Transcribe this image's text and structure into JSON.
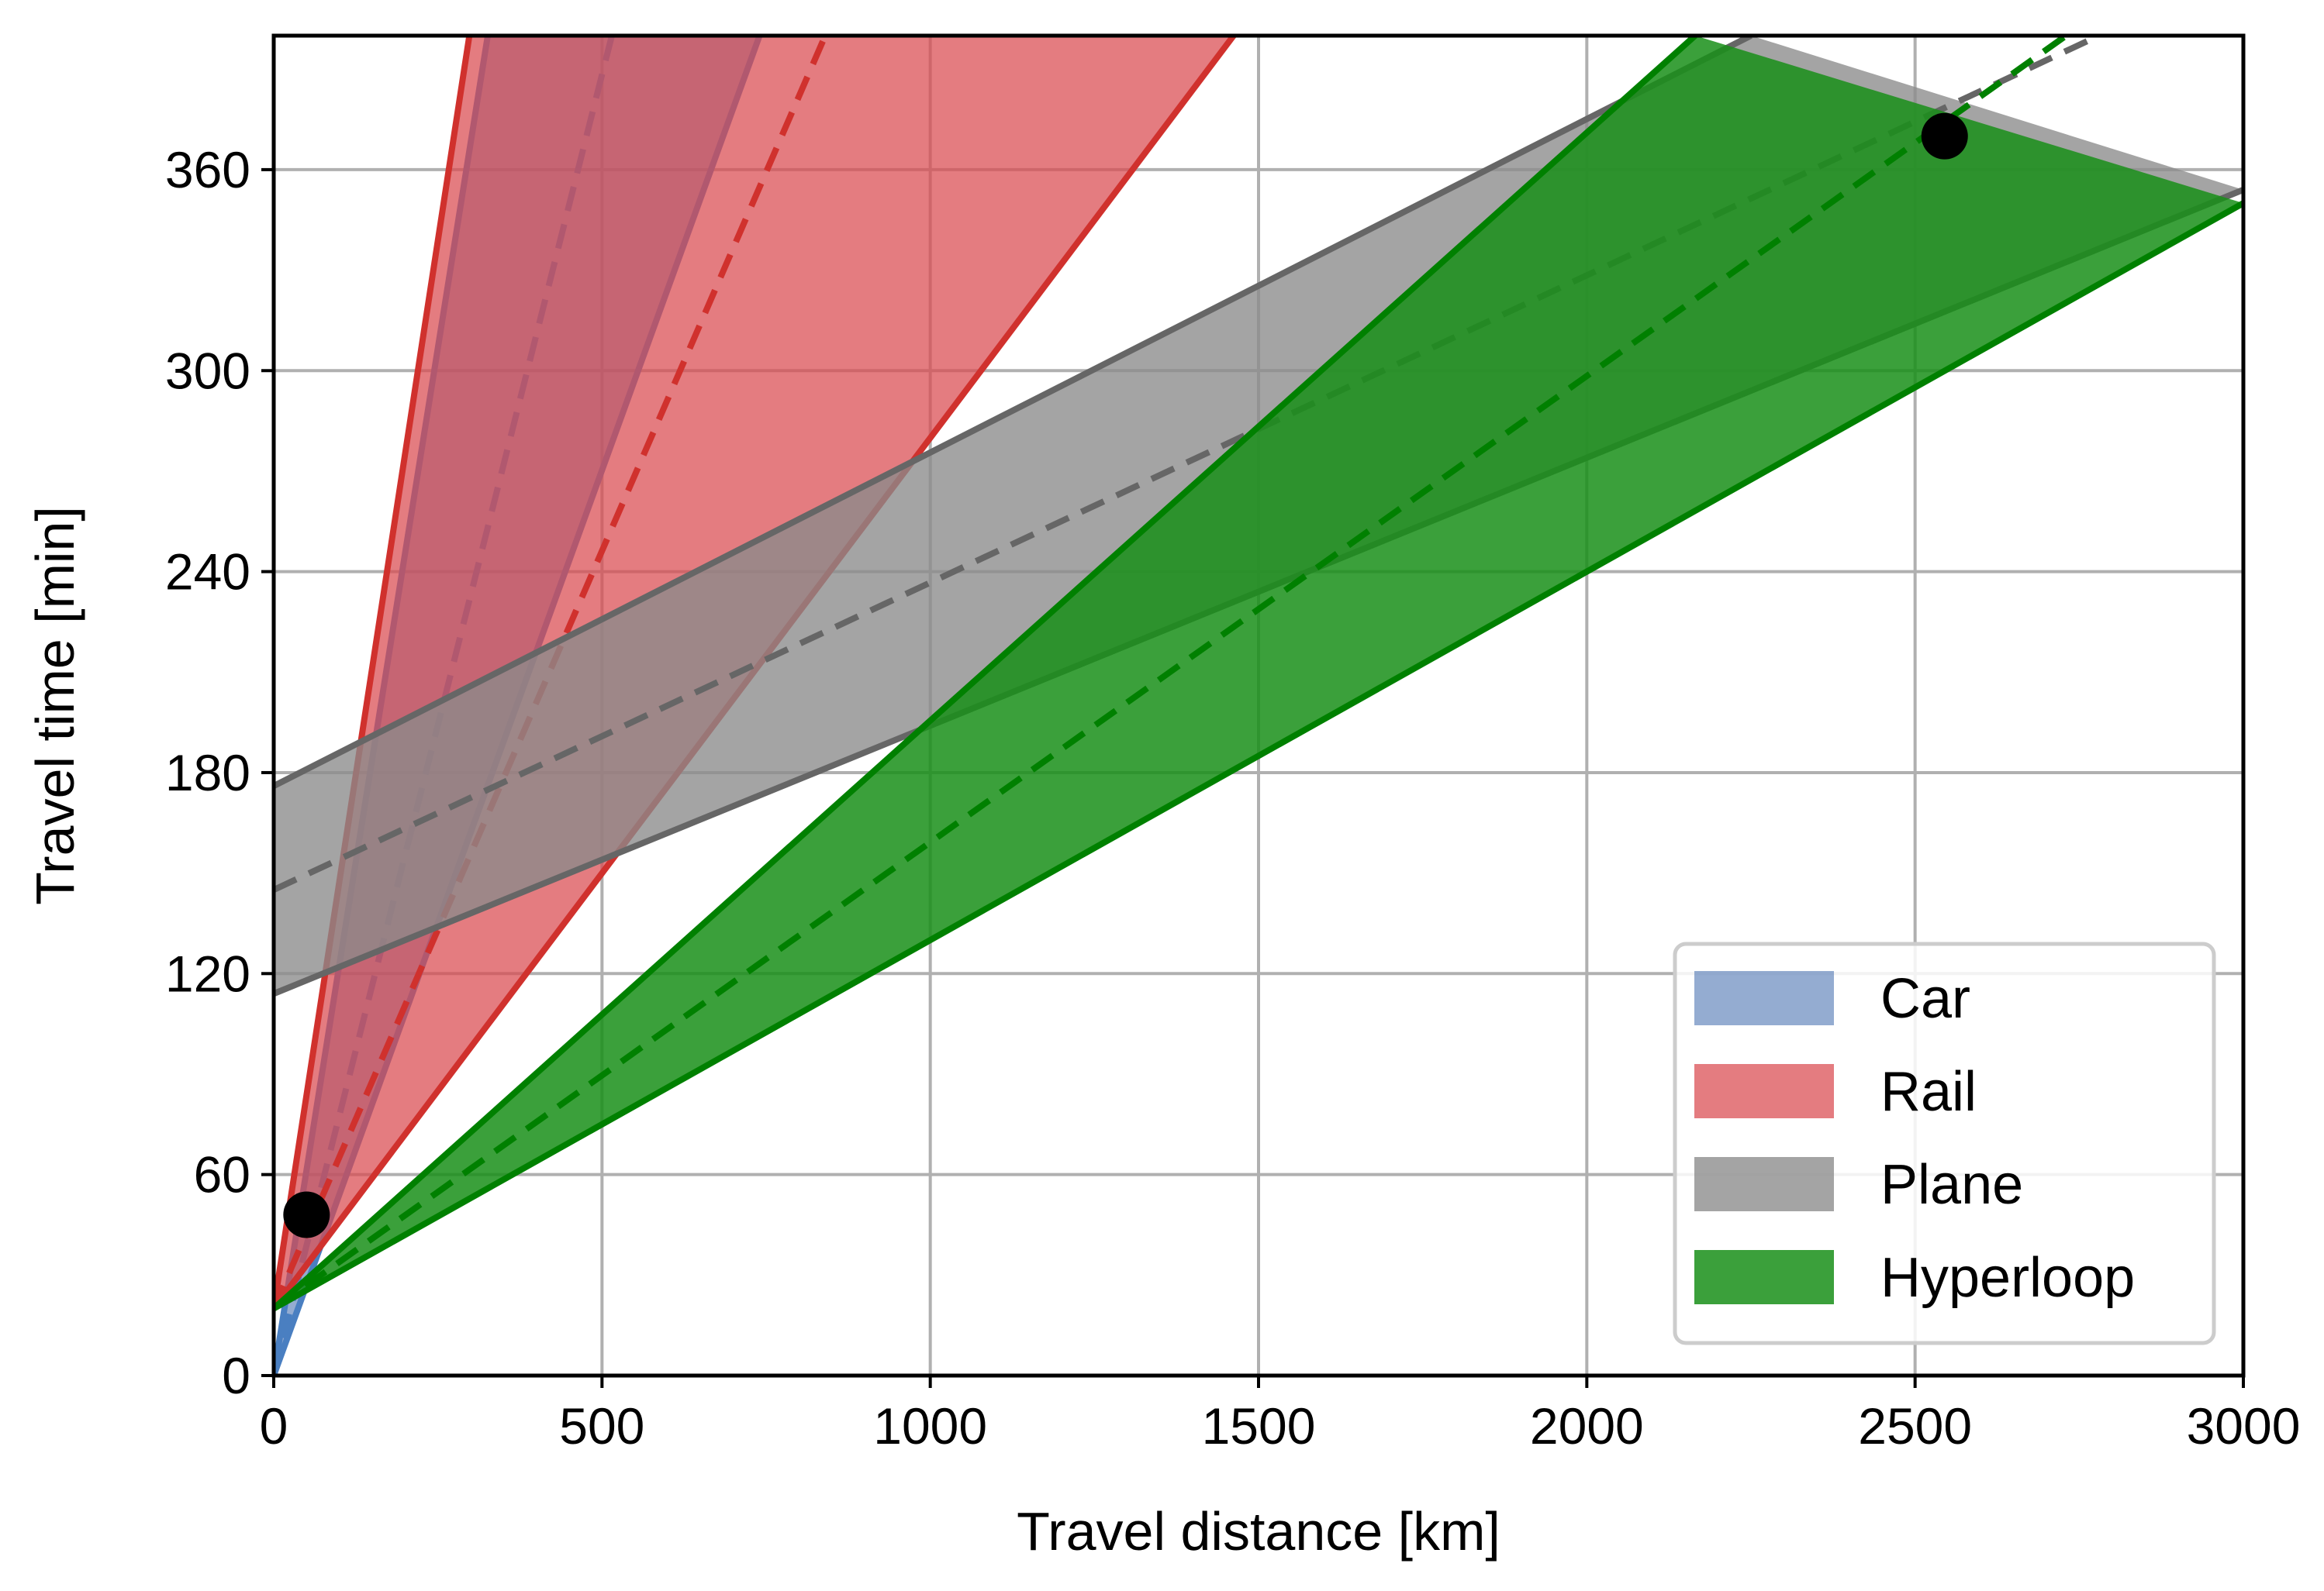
{
  "chart_data": {
    "type": "area",
    "xlabel": "Travel distance [km]",
    "ylabel": "Travel time [min]",
    "xlim": [
      0,
      3000
    ],
    "ylim": [
      0,
      400
    ],
    "xticks": [
      0,
      500,
      1000,
      1500,
      2000,
      2500,
      3000
    ],
    "yticks": [
      0,
      60,
      120,
      180,
      240,
      300,
      360
    ],
    "grid": true,
    "legend_position": "lower-right",
    "series": [
      {
        "name": "Car",
        "color": "#4a7fc1",
        "fill": "#5b7fb8",
        "fill_opacity": 0.65,
        "lower": [
          [
            0,
            0
          ],
          [
            740,
            400
          ]
        ],
        "upper": [
          [
            0,
            0
          ],
          [
            326,
            400
          ]
        ],
        "median": [
          [
            0,
            0
          ],
          [
            515,
            400
          ]
        ]
      },
      {
        "name": "Rail",
        "color": "#d0312d",
        "fill": "#d9494f",
        "fill_opacity": 0.72,
        "lower": [
          [
            0,
            20
          ],
          [
            1462,
            400
          ]
        ],
        "upper": [
          [
            0,
            20
          ],
          [
            298,
            400
          ]
        ],
        "median": [
          [
            0,
            20
          ],
          [
            840,
            400
          ]
        ]
      },
      {
        "name": "Plane",
        "color": "#666666",
        "fill": "#8a8a8a",
        "fill_opacity": 0.78,
        "lower": [
          [
            0,
            114
          ],
          [
            3000,
            354
          ]
        ],
        "upper": [
          [
            0,
            176
          ],
          [
            2250,
            400
          ]
        ],
        "median": [
          [
            0,
            145
          ],
          [
            2780,
            400
          ]
        ]
      },
      {
        "name": "Hyperloop",
        "color": "#008000",
        "fill": "#198f19",
        "fill_opacity": 0.85,
        "lower": [
          [
            0,
            20
          ],
          [
            3000,
            350
          ]
        ],
        "upper": [
          [
            0,
            20
          ],
          [
            2165,
            400
          ]
        ],
        "median": [
          [
            0,
            20
          ],
          [
            2730,
            400
          ]
        ]
      }
    ],
    "points": [
      {
        "x": 50,
        "y": 48
      },
      {
        "x": 2545,
        "y": 370
      }
    ]
  }
}
